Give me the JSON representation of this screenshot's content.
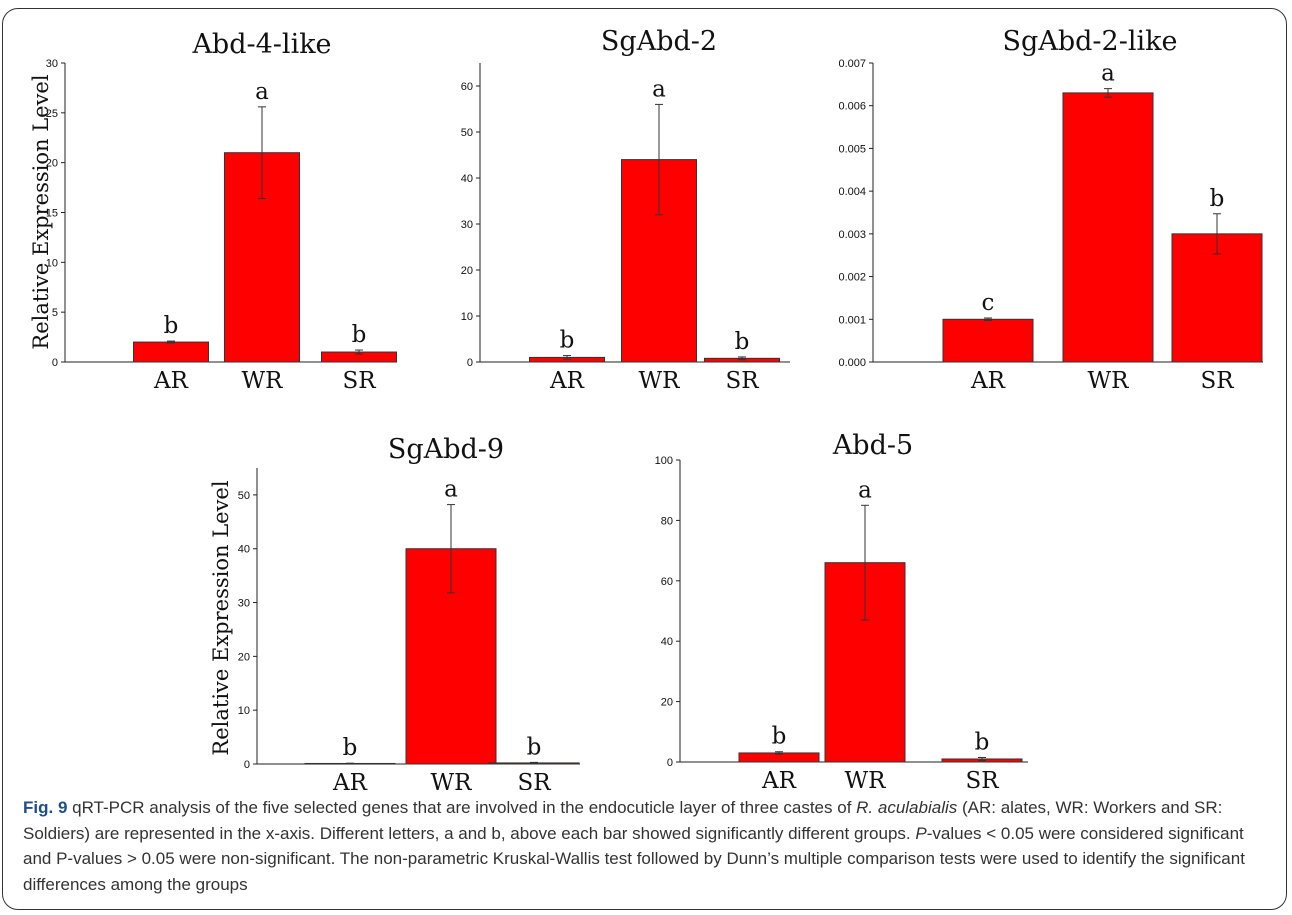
{
  "chart_data": [
    {
      "type": "bar",
      "title": "Abd-4-like",
      "ylabel": "Relative Expression Level",
      "categories": [
        "AR",
        "WR",
        "SR"
      ],
      "values": [
        2.0,
        21.0,
        1.0
      ],
      "errors": [
        0.1,
        4.6,
        0.2
      ],
      "significance": [
        "b",
        "a",
        "b"
      ],
      "ylim": [
        0,
        30
      ],
      "yticks": [
        "0",
        "5",
        "10",
        "15",
        "20",
        "25",
        "30"
      ],
      "bar_color": "#ff0000"
    },
    {
      "type": "bar",
      "title": "SgAbd-2",
      "ylabel": "",
      "categories": [
        "AR",
        "WR",
        "SR"
      ],
      "values": [
        1.0,
        44.0,
        0.8
      ],
      "errors": [
        0.4,
        12.0,
        0.3
      ],
      "significance": [
        "b",
        "a",
        "b"
      ],
      "ylim": [
        0,
        65
      ],
      "yticks": [
        "0",
        "10",
        "20",
        "30",
        "40",
        "50",
        "60"
      ],
      "bar_color": "#ff0000"
    },
    {
      "type": "bar",
      "title": "SgAbd-2-like",
      "ylabel": "",
      "categories": [
        "AR",
        "WR",
        "SR"
      ],
      "values": [
        0.001,
        0.0063,
        0.003
      ],
      "errors": [
        3e-05,
        0.0001,
        0.00047
      ],
      "significance": [
        "c",
        "a",
        "b"
      ],
      "ylim": [
        0,
        0.007
      ],
      "yticks": [
        "0.000",
        "0.001",
        "0.002",
        "0.003",
        "0.004",
        "0.005",
        "0.006",
        "0.007"
      ],
      "bar_color": "#ff0000"
    },
    {
      "type": "bar",
      "title": "SgAbd-9",
      "ylabel": "Relative Expression Level",
      "categories": [
        "AR",
        "WR",
        "SR"
      ],
      "values": [
        0.1,
        40.0,
        0.2
      ],
      "errors": [
        0.05,
        8.2,
        0.1
      ],
      "significance": [
        "b",
        "a",
        "b"
      ],
      "ylim": [
        0,
        55
      ],
      "yticks": [
        "0",
        "10",
        "20",
        "30",
        "40",
        "50"
      ],
      "bar_color": "#ff0000"
    },
    {
      "type": "bar",
      "title": "Abd-5",
      "ylabel": "",
      "categories": [
        "AR",
        "WR",
        "SR"
      ],
      "values": [
        3.0,
        66.0,
        1.0
      ],
      "errors": [
        0.4,
        19.0,
        0.5
      ],
      "significance": [
        "b",
        "a",
        "b"
      ],
      "ylim": [
        0,
        100
      ],
      "yticks": [
        "0",
        "20",
        "40",
        "60",
        "80",
        "100"
      ],
      "bar_color": "#ff0000"
    }
  ],
  "caption": {
    "label": "Fig. 9",
    "part1": " qRT-PCR analysis of the five selected genes that are involved in the endocuticle layer of three castes of ",
    "species": "R. aculabialis",
    "part2": " (AR: alates, WR: Workers and SR: Soldiers) are represented in the x-axis. Different letters, a and b, above each bar showed significantly different groups. ",
    "p_italic": "P",
    "part3": "-values < 0.05 were considered significant and P-values > 0.05 were non-significant. The non-parametric Kruskal-Wallis test followed by Dunn’s multiple comparison tests were used to identify the significant differences among the groups"
  }
}
